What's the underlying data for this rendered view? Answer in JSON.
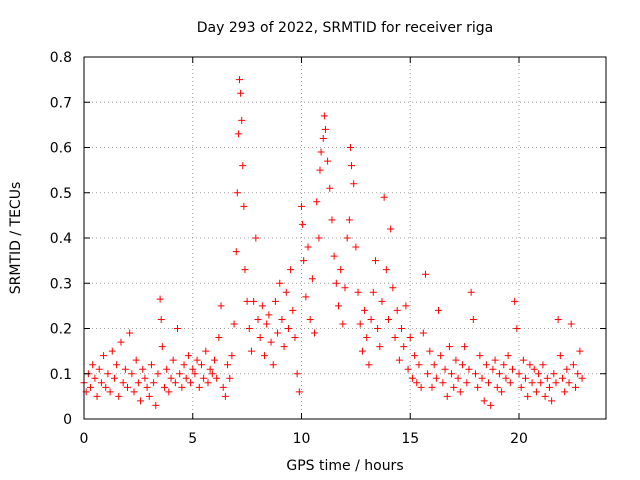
{
  "chart_data": {
    "type": "scatter",
    "title": "Day 293 of 2022, SRMTID for receiver riga",
    "xlabel": "GPS time / hours",
    "ylabel": "SRMTID / TECUs",
    "xlim": [
      0,
      24
    ],
    "ylim": [
      0,
      0.8
    ],
    "xticks": [
      0,
      5,
      10,
      15,
      20
    ],
    "yticks": [
      0,
      0.1,
      0.2,
      0.3,
      0.4,
      0.5,
      0.6,
      0.7,
      0.8
    ],
    "xtick_labels": [
      "0",
      "5",
      "10",
      "15",
      "20"
    ],
    "ytick_labels": [
      "0",
      "0.1",
      "0.2",
      "0.3",
      "0.4",
      "0.5",
      "0.6",
      "0.7",
      "0.8"
    ],
    "grid": true,
    "marker": "+",
    "color": "#ff0000",
    "series": [
      {
        "name": "SRMTID",
        "points": [
          [
            0.0,
            0.08
          ],
          [
            0.1,
            0.06
          ],
          [
            0.2,
            0.1
          ],
          [
            0.3,
            0.07
          ],
          [
            0.4,
            0.12
          ],
          [
            0.5,
            0.09
          ],
          [
            0.6,
            0.05
          ],
          [
            0.7,
            0.11
          ],
          [
            0.8,
            0.08
          ],
          [
            0.9,
            0.14
          ],
          [
            1.0,
            0.07
          ],
          [
            1.1,
            0.1
          ],
          [
            1.2,
            0.06
          ],
          [
            1.3,
            0.15
          ],
          [
            1.4,
            0.09
          ],
          [
            1.5,
            0.12
          ],
          [
            1.6,
            0.05
          ],
          [
            1.7,
            0.17
          ],
          [
            1.8,
            0.08
          ],
          [
            1.9,
            0.11
          ],
          [
            2.0,
            0.07
          ],
          [
            2.1,
            0.19
          ],
          [
            2.2,
            0.1
          ],
          [
            2.3,
            0.06
          ],
          [
            2.4,
            0.13
          ],
          [
            2.5,
            0.08
          ],
          [
            2.6,
            0.04
          ],
          [
            2.7,
            0.11
          ],
          [
            2.8,
            0.09
          ],
          [
            2.9,
            0.07
          ],
          [
            3.0,
            0.05
          ],
          [
            3.1,
            0.12
          ],
          [
            3.2,
            0.08
          ],
          [
            3.3,
            0.03
          ],
          [
            3.4,
            0.1
          ],
          [
            3.5,
            0.265
          ],
          [
            3.55,
            0.22
          ],
          [
            3.6,
            0.16
          ],
          [
            3.7,
            0.07
          ],
          [
            3.8,
            0.11
          ],
          [
            3.9,
            0.06
          ],
          [
            4.0,
            0.09
          ],
          [
            4.1,
            0.13
          ],
          [
            4.2,
            0.08
          ],
          [
            4.3,
            0.2
          ],
          [
            4.4,
            0.1
          ],
          [
            4.5,
            0.07
          ],
          [
            4.6,
            0.12
          ],
          [
            4.7,
            0.09
          ],
          [
            4.8,
            0.14
          ],
          [
            4.9,
            0.08
          ],
          [
            5.0,
            0.11
          ],
          [
            5.1,
            0.1
          ],
          [
            5.2,
            0.13
          ],
          [
            5.3,
            0.07
          ],
          [
            5.4,
            0.12
          ],
          [
            5.5,
            0.09
          ],
          [
            5.6,
            0.15
          ],
          [
            5.7,
            0.08
          ],
          [
            5.8,
            0.11
          ],
          [
            5.9,
            0.1
          ],
          [
            6.0,
            0.13
          ],
          [
            6.1,
            0.09
          ],
          [
            6.2,
            0.18
          ],
          [
            6.3,
            0.25
          ],
          [
            6.4,
            0.07
          ],
          [
            6.5,
            0.05
          ],
          [
            6.6,
            0.12
          ],
          [
            6.7,
            0.09
          ],
          [
            6.8,
            0.14
          ],
          [
            6.9,
            0.21
          ],
          [
            7.0,
            0.37
          ],
          [
            7.05,
            0.5
          ],
          [
            7.1,
            0.63
          ],
          [
            7.15,
            0.75
          ],
          [
            7.2,
            0.72
          ],
          [
            7.25,
            0.66
          ],
          [
            7.3,
            0.56
          ],
          [
            7.35,
            0.47
          ],
          [
            7.4,
            0.33
          ],
          [
            7.5,
            0.26
          ],
          [
            7.6,
            0.2
          ],
          [
            7.7,
            0.15
          ],
          [
            7.8,
            0.26
          ],
          [
            7.9,
            0.4
          ],
          [
            8.0,
            0.22
          ],
          [
            8.1,
            0.18
          ],
          [
            8.2,
            0.25
          ],
          [
            8.3,
            0.14
          ],
          [
            8.4,
            0.21
          ],
          [
            8.5,
            0.23
          ],
          [
            8.6,
            0.17
          ],
          [
            8.7,
            0.12
          ],
          [
            8.8,
            0.26
          ],
          [
            8.9,
            0.19
          ],
          [
            9.0,
            0.3
          ],
          [
            9.1,
            0.22
          ],
          [
            9.2,
            0.16
          ],
          [
            9.3,
            0.28
          ],
          [
            9.4,
            0.2
          ],
          [
            9.5,
            0.33
          ],
          [
            9.6,
            0.24
          ],
          [
            9.7,
            0.18
          ],
          [
            9.8,
            0.1
          ],
          [
            9.9,
            0.06
          ],
          [
            10.0,
            0.47
          ],
          [
            10.05,
            0.43
          ],
          [
            10.1,
            0.35
          ],
          [
            10.2,
            0.27
          ],
          [
            10.3,
            0.38
          ],
          [
            10.4,
            0.22
          ],
          [
            10.5,
            0.31
          ],
          [
            10.6,
            0.19
          ],
          [
            10.7,
            0.48
          ],
          [
            10.8,
            0.4
          ],
          [
            10.85,
            0.55
          ],
          [
            10.9,
            0.59
          ],
          [
            11.0,
            0.62
          ],
          [
            11.05,
            0.67
          ],
          [
            11.1,
            0.64
          ],
          [
            11.2,
            0.57
          ],
          [
            11.3,
            0.51
          ],
          [
            11.4,
            0.44
          ],
          [
            11.5,
            0.36
          ],
          [
            11.6,
            0.3
          ],
          [
            11.7,
            0.25
          ],
          [
            11.8,
            0.33
          ],
          [
            11.9,
            0.21
          ],
          [
            12.0,
            0.29
          ],
          [
            12.1,
            0.4
          ],
          [
            12.2,
            0.44
          ],
          [
            12.25,
            0.6
          ],
          [
            12.3,
            0.56
          ],
          [
            12.4,
            0.52
          ],
          [
            12.5,
            0.38
          ],
          [
            12.6,
            0.28
          ],
          [
            12.7,
            0.21
          ],
          [
            12.8,
            0.15
          ],
          [
            12.9,
            0.24
          ],
          [
            13.0,
            0.18
          ],
          [
            13.1,
            0.12
          ],
          [
            13.2,
            0.22
          ],
          [
            13.3,
            0.28
          ],
          [
            13.4,
            0.35
          ],
          [
            13.5,
            0.2
          ],
          [
            13.6,
            0.16
          ],
          [
            13.7,
            0.26
          ],
          [
            13.8,
            0.49
          ],
          [
            13.9,
            0.33
          ],
          [
            14.0,
            0.22
          ],
          [
            14.1,
            0.42
          ],
          [
            14.2,
            0.29
          ],
          [
            14.3,
            0.18
          ],
          [
            14.4,
            0.24
          ],
          [
            14.5,
            0.13
          ],
          [
            14.6,
            0.2
          ],
          [
            14.7,
            0.16
          ],
          [
            14.8,
            0.25
          ],
          [
            14.9,
            0.11
          ],
          [
            15.0,
            0.18
          ],
          [
            15.1,
            0.09
          ],
          [
            15.2,
            0.14
          ],
          [
            15.3,
            0.08
          ],
          [
            15.4,
            0.12
          ],
          [
            15.5,
            0.07
          ],
          [
            15.6,
            0.19
          ],
          [
            15.7,
            0.32
          ],
          [
            15.8,
            0.1
          ],
          [
            15.9,
            0.15
          ],
          [
            16.0,
            0.07
          ],
          [
            16.1,
            0.12
          ],
          [
            16.2,
            0.09
          ],
          [
            16.3,
            0.24
          ],
          [
            16.4,
            0.14
          ],
          [
            16.5,
            0.08
          ],
          [
            16.6,
            0.11
          ],
          [
            16.7,
            0.05
          ],
          [
            16.8,
            0.16
          ],
          [
            16.9,
            0.1
          ],
          [
            17.0,
            0.07
          ],
          [
            17.1,
            0.13
          ],
          [
            17.2,
            0.09
          ],
          [
            17.3,
            0.06
          ],
          [
            17.4,
            0.12
          ],
          [
            17.5,
            0.16
          ],
          [
            17.6,
            0.08
          ],
          [
            17.7,
            0.11
          ],
          [
            17.8,
            0.28
          ],
          [
            17.9,
            0.22
          ],
          [
            18.0,
            0.1
          ],
          [
            18.1,
            0.07
          ],
          [
            18.2,
            0.14
          ],
          [
            18.3,
            0.09
          ],
          [
            18.4,
            0.04
          ],
          [
            18.5,
            0.12
          ],
          [
            18.6,
            0.08
          ],
          [
            18.7,
            0.03
          ],
          [
            18.8,
            0.11
          ],
          [
            18.9,
            0.13
          ],
          [
            19.0,
            0.07
          ],
          [
            19.1,
            0.1
          ],
          [
            19.2,
            0.06
          ],
          [
            19.3,
            0.12
          ],
          [
            19.4,
            0.09
          ],
          [
            19.5,
            0.14
          ],
          [
            19.6,
            0.08
          ],
          [
            19.7,
            0.11
          ],
          [
            19.8,
            0.26
          ],
          [
            19.9,
            0.2
          ],
          [
            20.0,
            0.1
          ],
          [
            20.1,
            0.07
          ],
          [
            20.2,
            0.13
          ],
          [
            20.3,
            0.09
          ],
          [
            20.4,
            0.05
          ],
          [
            20.5,
            0.12
          ],
          [
            20.6,
            0.08
          ],
          [
            20.7,
            0.11
          ],
          [
            20.8,
            0.06
          ],
          [
            20.9,
            0.1
          ],
          [
            21.0,
            0.08
          ],
          [
            21.1,
            0.12
          ],
          [
            21.2,
            0.05
          ],
          [
            21.3,
            0.09
          ],
          [
            21.4,
            0.07
          ],
          [
            21.5,
            0.04
          ],
          [
            21.6,
            0.1
          ],
          [
            21.7,
            0.08
          ],
          [
            21.8,
            0.22
          ],
          [
            21.9,
            0.14
          ],
          [
            22.0,
            0.09
          ],
          [
            22.1,
            0.06
          ],
          [
            22.2,
            0.11
          ],
          [
            22.3,
            0.08
          ],
          [
            22.4,
            0.21
          ],
          [
            22.5,
            0.12
          ],
          [
            22.6,
            0.07
          ],
          [
            22.7,
            0.1
          ],
          [
            22.8,
            0.15
          ],
          [
            22.9,
            0.09
          ]
        ]
      }
    ]
  }
}
